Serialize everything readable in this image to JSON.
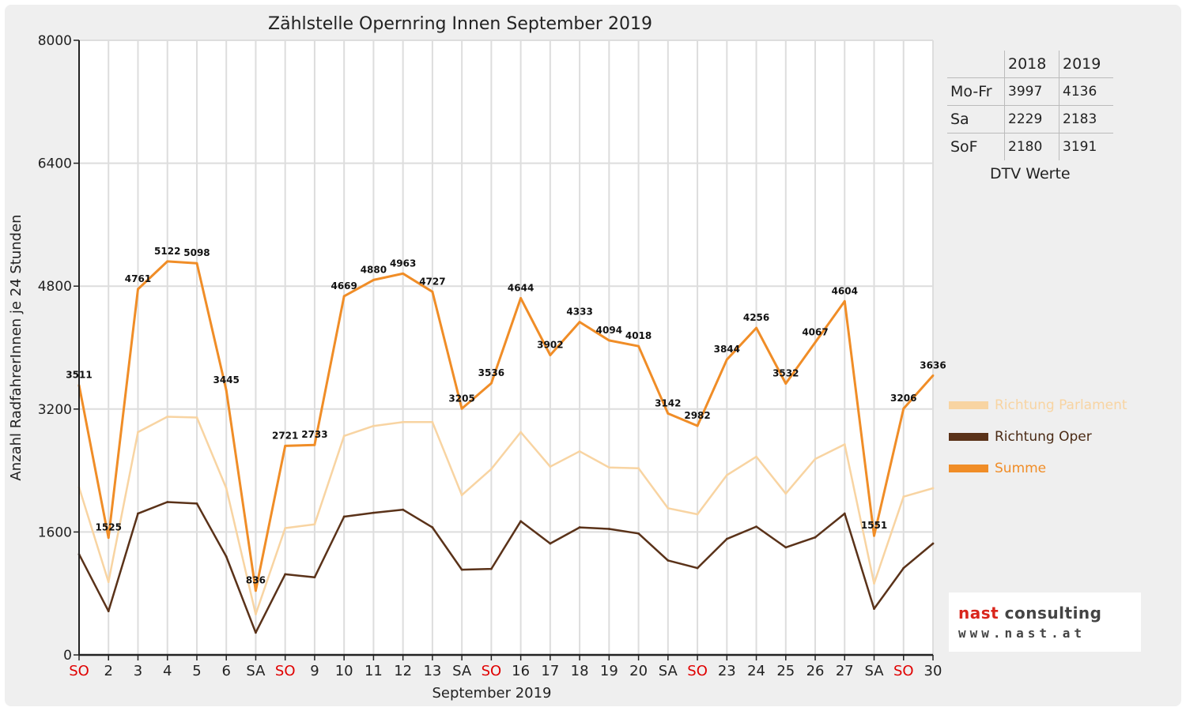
{
  "chart_data": {
    "type": "line",
    "title": "Zählstelle Opernring Innen September 2019",
    "xlabel": "September 2019",
    "ylabel": "Anzahl RadfahrerInnen je 24 Stunden",
    "ylim": [
      0,
      8000
    ],
    "yticks": [
      0,
      1600,
      3200,
      4800,
      6400,
      8000
    ],
    "grid": true,
    "legend_position": "right",
    "categories": [
      "SO",
      "2",
      "3",
      "4",
      "5",
      "6",
      "SA",
      "SO",
      "9",
      "10",
      "11",
      "12",
      "13",
      "SA",
      "SO",
      "16",
      "17",
      "18",
      "19",
      "20",
      "SA",
      "SO",
      "23",
      "24",
      "25",
      "26",
      "27",
      "SA",
      "SO",
      "30"
    ],
    "weekend_categories": [
      0,
      7,
      14,
      21,
      28
    ],
    "series": [
      {
        "name": "Richtung Parlament",
        "color": "#f8d4a2",
        "values": [
          2180,
          950,
          2900,
          3100,
          3090,
          2170,
          530,
          1650,
          1700,
          2850,
          2980,
          3030,
          3030,
          2080,
          2420,
          2900,
          2450,
          2650,
          2440,
          2430,
          1910,
          1830,
          2340,
          2580,
          2100,
          2550,
          2740,
          930,
          2060,
          2170
        ]
      },
      {
        "name": "Richtung Oper",
        "color": "#5a3219",
        "values": [
          1310,
          570,
          1840,
          1990,
          1970,
          1280,
          290,
          1050,
          1010,
          1800,
          1850,
          1890,
          1660,
          1110,
          1120,
          1740,
          1450,
          1660,
          1640,
          1580,
          1230,
          1130,
          1510,
          1670,
          1400,
          1530,
          1840,
          600,
          1130,
          1450
        ]
      },
      {
        "name": "Summe",
        "color": "#f08d27",
        "values": [
          3511,
          1525,
          4761,
          5122,
          5098,
          3445,
          836,
          2721,
          2733,
          4669,
          4880,
          4963,
          4727,
          3205,
          3536,
          4644,
          3902,
          4333,
          4094,
          4018,
          3142,
          2982,
          3844,
          4256,
          3532,
          4067,
          4604,
          1551,
          3206,
          3636
        ],
        "data_labels": true
      }
    ]
  },
  "dtv_table": {
    "headers": [
      "",
      "2018",
      "2019"
    ],
    "rows": [
      {
        "label": "Mo-Fr",
        "v2018": "3997",
        "v2019": "4136"
      },
      {
        "label": "Sa",
        "v2018": "2229",
        "v2019": "2183"
      },
      {
        "label": "SoF",
        "v2018": "2180",
        "v2019": "3191"
      }
    ],
    "caption": "DTV Werte"
  },
  "logo": {
    "line1_a": "nast",
    "line1_b": "consulting",
    "line2": "www.nast.at"
  },
  "colors": {
    "axis": "#222222",
    "grid": "#dddddd",
    "weekend_label": "#e00000"
  }
}
